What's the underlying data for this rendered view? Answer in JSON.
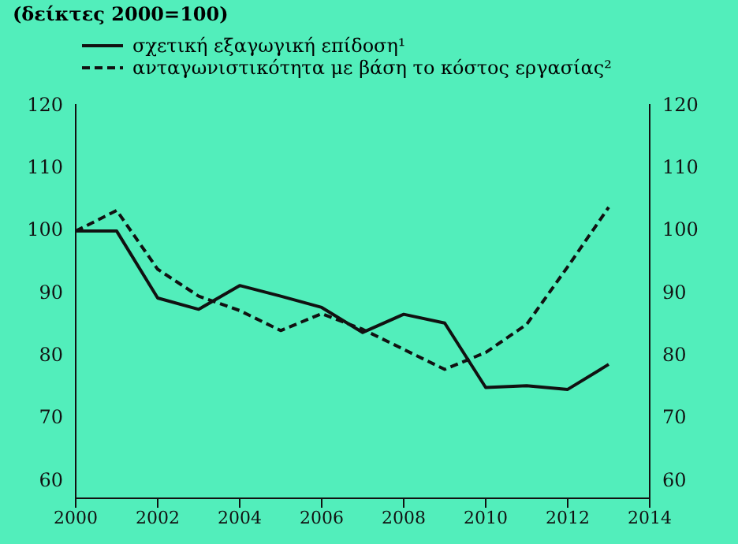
{
  "chart_data": {
    "type": "line",
    "title": "(δείκτες 2000=100)",
    "x": [
      2000,
      2001,
      2002,
      2003,
      2004,
      2005,
      2006,
      2007,
      2008,
      2009,
      2010,
      2011,
      2012,
      2013
    ],
    "series": [
      {
        "name": "σχετική εξαγωγική επίδοση¹",
        "color": "#111111",
        "line_style": "solid",
        "values": [
          99.7,
          99.7,
          89,
          87.2,
          91,
          89.3,
          87.5,
          83.5,
          86.4,
          85,
          74.7,
          75,
          74.4,
          78.4
        ]
      },
      {
        "name": "ανταγωνιστικότητα με βάση το κόστος εργασίας²",
        "color": "#111111",
        "line_style": "dashed",
        "values": [
          99.7,
          103,
          93.6,
          89.3,
          87,
          83.8,
          86.5,
          84,
          80.8,
          77.6,
          80.3,
          84.8,
          94,
          103.5
        ]
      }
    ],
    "xlim": [
      2000,
      2014
    ],
    "xticks": [
      2000,
      2002,
      2004,
      2006,
      2008,
      2010,
      2012,
      2014
    ],
    "ylim": [
      57,
      120
    ],
    "yticks": [
      60,
      70,
      80,
      90,
      100,
      110,
      120
    ],
    "y2lim": [
      57,
      120
    ],
    "y2ticks": [
      60,
      70,
      80,
      90,
      100,
      110,
      120
    ],
    "grid": false,
    "legend": "top left",
    "marker": "none"
  }
}
